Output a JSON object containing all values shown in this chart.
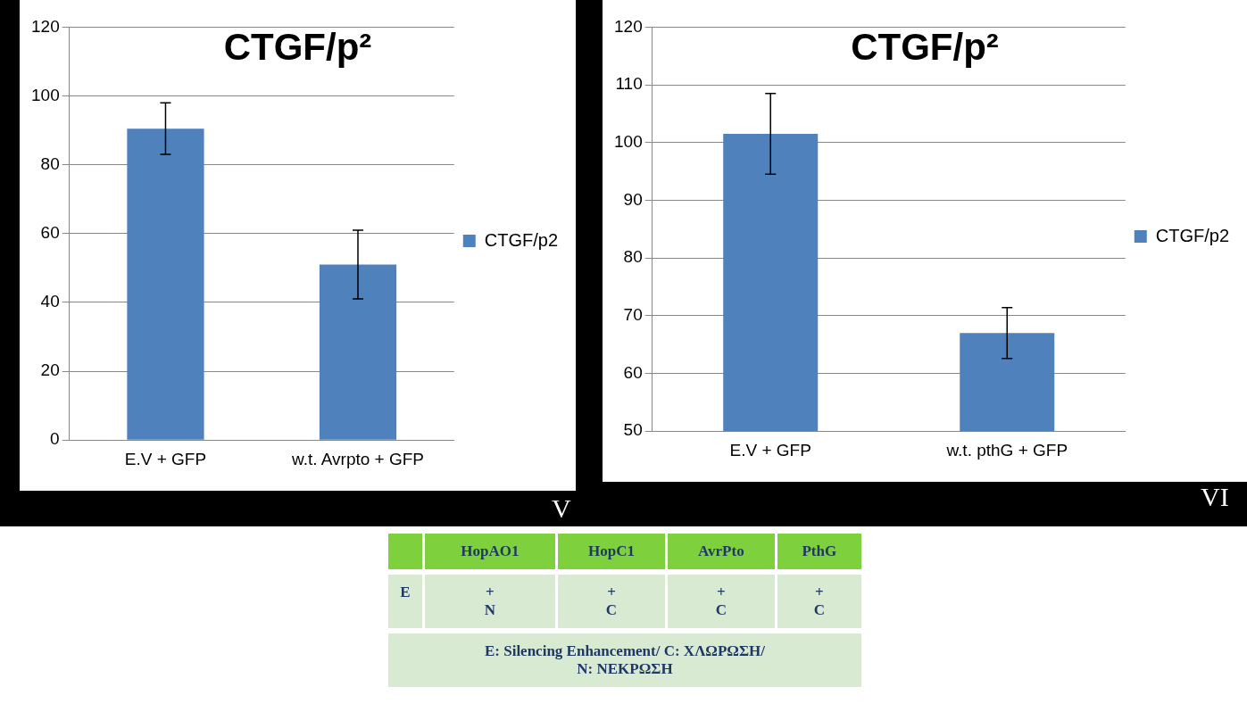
{
  "chart_data": [
    {
      "type": "bar",
      "title": "CTGF/p²",
      "categories": [
        "E.V + GFP",
        "w.t. Avrpto + GFP"
      ],
      "series": [
        {
          "name": "CTGF/p2",
          "color": "#4f81bd",
          "values": [
            90.5,
            51
          ],
          "errors": [
            7.5,
            10
          ]
        }
      ],
      "ylim": [
        0,
        120
      ],
      "yticks": [
        0,
        20,
        40,
        60,
        80,
        100,
        120
      ],
      "grid": "y",
      "legend": "right",
      "annotations": [
        "V"
      ]
    },
    {
      "type": "bar",
      "title": "CTGF/p²",
      "categories": [
        "E.V + GFP",
        "w.t. pthG + GFP"
      ],
      "series": [
        {
          "name": "CTGF/p2",
          "color": "#4f81bd",
          "values": [
            101.5,
            67
          ],
          "errors": [
            7,
            4.4
          ]
        }
      ],
      "ylim": [
        50,
        120
      ],
      "yticks": [
        50,
        60,
        70,
        80,
        90,
        100,
        110,
        120
      ],
      "grid": "y",
      "legend": "right",
      "annotations": [
        "VI"
      ]
    },
    {
      "type": "other",
      "categories": [
        "HopAO1",
        "HopC1",
        "AvrPto",
        "PthG"
      ],
      "y_categories": [
        "E"
      ],
      "cell_labels": [
        [
          "+\nN",
          "+\nC",
          "+\nC",
          "+\nC"
        ]
      ],
      "annotations": [
        "E: Silencing Enhancement/ C: ΧΛΩΡΩΣΗ/\nN: ΝΕΚΡΩΣΗ"
      ]
    }
  ]
}
